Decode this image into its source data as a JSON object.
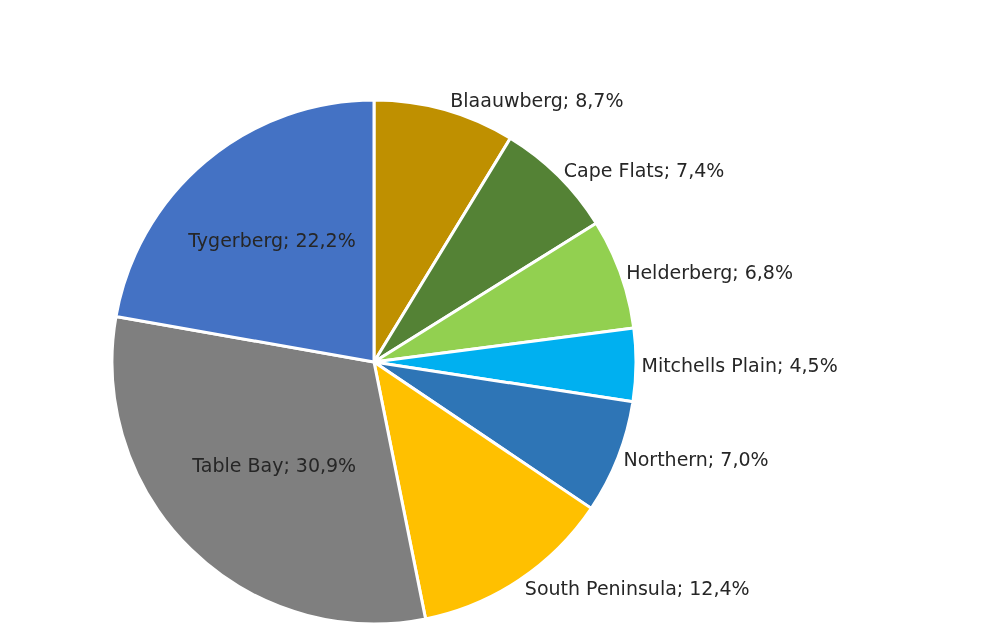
{
  "chart_data": {
    "type": "pie",
    "categories": [
      "Blaauwberg",
      "Cape Flats",
      "Helderberg",
      "Mitchells Plain",
      "Northern",
      "South Peninsula",
      "Table Bay",
      "Tygerberg"
    ],
    "values": [
      8.7,
      7.4,
      6.8,
      4.5,
      7.0,
      12.4,
      30.9,
      22.2
    ],
    "colors": [
      "#bf9000",
      "#548235",
      "#92d050",
      "#00b0f0",
      "#2e75b6",
      "#ffc000",
      "#7f7f7f",
      "#4472c4"
    ],
    "value_labels": [
      "8,7%",
      "7,4%",
      "6,8%",
      "4,5%",
      "7,0%",
      "12,4%",
      "30,9%",
      "22,2%"
    ]
  }
}
